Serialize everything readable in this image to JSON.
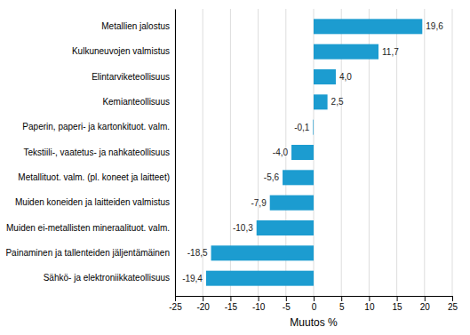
{
  "chart_data": {
    "type": "bar",
    "orientation": "horizontal",
    "categories": [
      "Sähkö- ja elektroniikkateollisuus",
      "Painaminen ja tallenteiden jäljentämäinen",
      "Muiden ei-metallisten mineraalituot. valm.",
      "Muiden koneiden ja laitteiden valmistus",
      "Metallituot. valm. (pl. koneet ja laitteet)",
      "Tekstiili-, vaatetus- ja nahkateollisuus",
      "Paperin, paperi- ja kartonkituot. valm.",
      "Kemianteollisuus",
      "Elintarviketeollisuus",
      "Kulkuneuvojen valmistus",
      "Metallien jalostus"
    ],
    "values": [
      -19.4,
      -18.5,
      -10.3,
      -7.9,
      -5.6,
      -4.0,
      -0.1,
      2.5,
      4.0,
      11.7,
      19.6
    ],
    "value_labels": [
      "-19,4",
      "-18,5",
      "-10,3",
      "-7,9",
      "-5,6",
      "-4,0",
      "-0,1",
      "2,5",
      "4,0",
      "11,7",
      "19,6"
    ],
    "data_labels": true,
    "color": "#1c9cd0",
    "xlabel": "Muutos %",
    "xlim": [
      -25,
      25
    ],
    "xticks": [
      -25,
      -20,
      -15,
      -10,
      -5,
      0,
      5,
      10,
      15,
      20,
      25
    ],
    "grid": true
  }
}
